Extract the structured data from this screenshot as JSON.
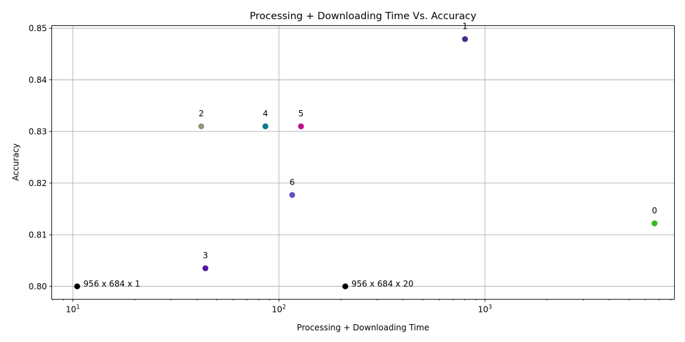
{
  "chart_data": {
    "type": "scatter",
    "title": "Processing + Downloading Time Vs. Accuracy",
    "xlabel": "Processing + Downloading Time",
    "ylabel": "Accuracy",
    "xscale": "log",
    "xlim": [
      7.9,
      8300
    ],
    "ylim": [
      0.7975,
      0.8505
    ],
    "grid": true,
    "x_ticks": [
      {
        "value": 10,
        "base": "10",
        "exp": "1"
      },
      {
        "value": 100,
        "base": "10",
        "exp": "2"
      },
      {
        "value": 1000,
        "base": "10",
        "exp": "3"
      }
    ],
    "y_ticks": [
      {
        "value": 0.8,
        "label": "0.80"
      },
      {
        "value": 0.81,
        "label": "0.81"
      },
      {
        "value": 0.82,
        "label": "0.82"
      },
      {
        "value": 0.83,
        "label": "0.83"
      },
      {
        "value": 0.84,
        "label": "0.84"
      },
      {
        "value": 0.85,
        "label": "0.85"
      }
    ],
    "points": [
      {
        "label": "0",
        "x": 6650,
        "y": 0.8122,
        "color": "#35b719",
        "label_pos": "above"
      },
      {
        "label": "1",
        "x": 800,
        "y": 0.8479,
        "color": "#4b2791",
        "label_pos": "above"
      },
      {
        "label": "2",
        "x": 42,
        "y": 0.831,
        "color": "#8a9a7b",
        "label_pos": "above"
      },
      {
        "label": "3",
        "x": 44,
        "y": 0.8035,
        "color": "#4c1a9e",
        "label_pos": "above"
      },
      {
        "label": "4",
        "x": 86,
        "y": 0.831,
        "color": "#0b7a8a",
        "label_pos": "above"
      },
      {
        "label": "5",
        "x": 128,
        "y": 0.831,
        "color": "#c4118c",
        "label_pos": "above"
      },
      {
        "label": "6",
        "x": 116,
        "y": 0.8177,
        "color": "#6451c0",
        "label_pos": "above"
      },
      {
        "label": "956 x 684 x 1",
        "x": 10.5,
        "y": 0.8,
        "color": "#000000",
        "label_pos": "right"
      },
      {
        "label": "956 x 684 x 20",
        "x": 210,
        "y": 0.8,
        "color": "#000000",
        "label_pos": "right"
      }
    ]
  }
}
